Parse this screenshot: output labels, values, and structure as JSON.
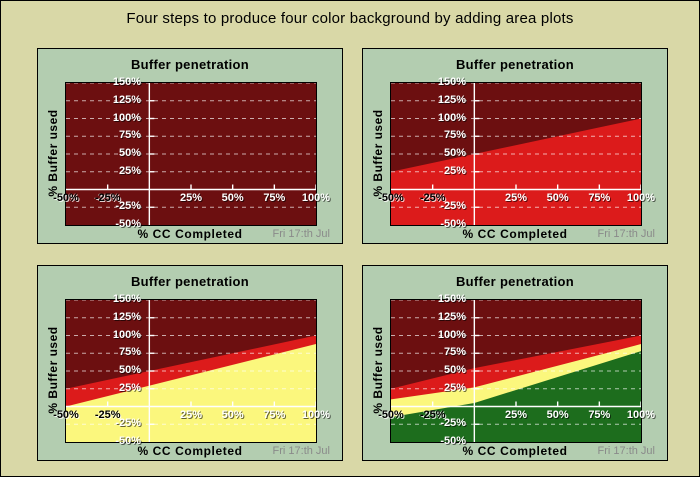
{
  "page_title": "Four steps to produce four color background by adding area plots",
  "date_label": "Fri 17:th Jul",
  "colors": {
    "figure_background": "#d9d8a7",
    "panel_background": "#b3cdb0",
    "dark_red": "#6c0f10",
    "red": "#dc1b1b",
    "yellow": "#fbf77d",
    "green": "#1d6d1d",
    "grid_line": "#ffffff",
    "axis_line": "#ffffff",
    "date_text": "#8a8a8a",
    "title_text": "#000000"
  },
  "axes": {
    "x": {
      "label": "% CC Completed",
      "min": -50,
      "max": 100,
      "ticks": [
        {
          "value": -50,
          "label": "-50%",
          "label_color": "black"
        },
        {
          "value": -25,
          "label": "-25%",
          "label_color": "black"
        },
        {
          "value": 25,
          "label": "25%",
          "label_color": "white"
        },
        {
          "value": 50,
          "label": "50%",
          "label_color": "white"
        },
        {
          "value": 75,
          "label": "75%",
          "label_color": "white"
        },
        {
          "value": 100,
          "label": "100%",
          "label_color": "white"
        }
      ],
      "tick_marks": [
        -25,
        25,
        50,
        75,
        100
      ]
    },
    "y": {
      "label": "% Buffer used",
      "min": -50,
      "max": 150,
      "ticks": [
        {
          "value": 150,
          "label": "150%"
        },
        {
          "value": 125,
          "label": "125%"
        },
        {
          "value": 100,
          "label": "100%"
        },
        {
          "value": 75,
          "label": "75%"
        },
        {
          "value": 50,
          "label": "50%"
        },
        {
          "value": 25,
          "label": "25%"
        },
        {
          "value": -25,
          "label": "-25%"
        },
        {
          "value": -50,
          "label": "-50%"
        }
      ],
      "gridlines": [
        150,
        125,
        100,
        75,
        50,
        25,
        -25
      ],
      "tick_marks": [
        125,
        100,
        75,
        50,
        25,
        -25
      ]
    }
  },
  "chart_data": [
    {
      "type": "area",
      "step": 1,
      "title": "Buffer penetration",
      "xlabel": "% CC Completed",
      "ylabel": "% Buffer used",
      "xlim": [
        -50,
        100
      ],
      "ylim": [
        -50,
        150
      ],
      "background_color": "#6c0f10",
      "series": []
    },
    {
      "type": "area",
      "step": 2,
      "title": "Buffer penetration",
      "xlabel": "% CC Completed",
      "ylabel": "% Buffer used",
      "xlim": [
        -50,
        100
      ],
      "ylim": [
        -50,
        150
      ],
      "background_color": "#6c0f10",
      "series": [
        {
          "name": "red area",
          "color": "#dc1b1b",
          "x": [
            -50,
            100
          ],
          "y": [
            25,
            100
          ]
        }
      ]
    },
    {
      "type": "area",
      "step": 3,
      "title": "Buffer penetration",
      "xlabel": "% CC Completed",
      "ylabel": "% Buffer used",
      "xlim": [
        -50,
        100
      ],
      "ylim": [
        -50,
        150
      ],
      "background_color": "#6c0f10",
      "series": [
        {
          "name": "red area",
          "color": "#dc1b1b",
          "x": [
            -50,
            100
          ],
          "y": [
            25,
            100
          ]
        },
        {
          "name": "yellow area",
          "color": "#fbf77d",
          "x": [
            -50,
            100
          ],
          "y": [
            0,
            88
          ]
        }
      ]
    },
    {
      "type": "area",
      "step": 4,
      "title": "Buffer penetration",
      "xlabel": "% CC Completed",
      "ylabel": "% Buffer used",
      "xlim": [
        -50,
        100
      ],
      "ylim": [
        -50,
        150
      ],
      "background_color": "#6c0f10",
      "series": [
        {
          "name": "red area",
          "color": "#dc1b1b",
          "x": [
            -50,
            0,
            100
          ],
          "y": [
            25,
            54,
            100
          ]
        },
        {
          "name": "yellow area",
          "color": "#fbf77d",
          "x": [
            -50,
            0,
            100
          ],
          "y": [
            10,
            27,
            88
          ]
        },
        {
          "name": "green area",
          "color": "#1d6d1d",
          "x": [
            -50,
            0,
            100
          ],
          "y": [
            -15,
            5,
            78
          ]
        }
      ]
    }
  ]
}
